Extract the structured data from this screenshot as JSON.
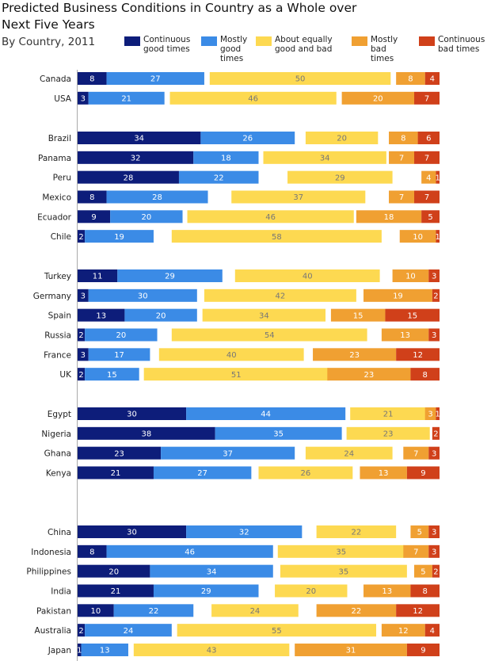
{
  "chart_data": {
    "type": "bar",
    "orientation": "horizontal",
    "stacked": true,
    "title": "Predicted Business Conditions in Country as a Whole over Next Five Years",
    "subtitle": "By Country, 2011",
    "legend_position": "top",
    "grid": false,
    "series": [
      {
        "name": "Continuous good times",
        "color": "#0d1d7a",
        "label_color": "#ffffff"
      },
      {
        "name": "Mostly good times",
        "color": "#3b8be6",
        "label_color": "#ffffff"
      },
      {
        "name": "About equally good and bad",
        "color": "#fdd951",
        "label_color": "#777777"
      },
      {
        "name": "Mostly bad times",
        "color": "#f0a032",
        "label_color": "#ffffff"
      },
      {
        "name": "Continuous bad times",
        "color": "#d0401a",
        "label_color": "#ffffff"
      }
    ],
    "groups": [
      [
        {
          "country": "Canada",
          "values": [
            8,
            27,
            50,
            8,
            4
          ]
        },
        {
          "country": "USA",
          "values": [
            3,
            21,
            46,
            20,
            7
          ]
        }
      ],
      [
        {
          "country": "Brazil",
          "values": [
            34,
            26,
            20,
            8,
            6
          ]
        },
        {
          "country": "Panama",
          "values": [
            32,
            18,
            34,
            7,
            7
          ]
        },
        {
          "country": "Peru",
          "values": [
            28,
            22,
            29,
            4,
            1
          ]
        },
        {
          "country": "Mexico",
          "values": [
            8,
            28,
            37,
            7,
            7
          ]
        },
        {
          "country": "Ecuador",
          "values": [
            9,
            20,
            46,
            18,
            5
          ]
        },
        {
          "country": "Chile",
          "values": [
            2,
            19,
            58,
            10,
            1
          ]
        }
      ],
      [
        {
          "country": "Turkey",
          "values": [
            11,
            29,
            40,
            10,
            3
          ]
        },
        {
          "country": "Germany",
          "values": [
            3,
            30,
            42,
            19,
            2
          ]
        },
        {
          "country": "Spain",
          "values": [
            13,
            20,
            34,
            15,
            15
          ]
        },
        {
          "country": "Russia",
          "values": [
            2,
            20,
            54,
            13,
            3
          ]
        },
        {
          "country": "France",
          "values": [
            3,
            17,
            40,
            23,
            12
          ]
        },
        {
          "country": "UK",
          "values": [
            2,
            15,
            51,
            23,
            8
          ]
        }
      ],
      [
        {
          "country": "Egypt",
          "values": [
            30,
            44,
            21,
            3,
            1
          ]
        },
        {
          "country": "Nigeria",
          "values": [
            38,
            35,
            23,
            null,
            2
          ]
        },
        {
          "country": "Ghana",
          "values": [
            23,
            37,
            24,
            7,
            3
          ]
        },
        {
          "country": "Kenya",
          "values": [
            21,
            27,
            26,
            13,
            9
          ]
        }
      ],
      [
        {
          "country": "China",
          "values": [
            30,
            32,
            22,
            5,
            3
          ]
        },
        {
          "country": "Indonesia",
          "values": [
            8,
            46,
            35,
            7,
            3
          ]
        },
        {
          "country": "Philippines",
          "values": [
            20,
            34,
            35,
            5,
            2
          ]
        },
        {
          "country": "India",
          "values": [
            21,
            29,
            20,
            13,
            8
          ]
        },
        {
          "country": "Pakistan",
          "values": [
            10,
            22,
            24,
            22,
            12
          ]
        },
        {
          "country": "Australia",
          "values": [
            2,
            24,
            55,
            12,
            4
          ]
        },
        {
          "country": "Japan",
          "values": [
            1,
            13,
            43,
            31,
            9
          ]
        }
      ]
    ]
  }
}
